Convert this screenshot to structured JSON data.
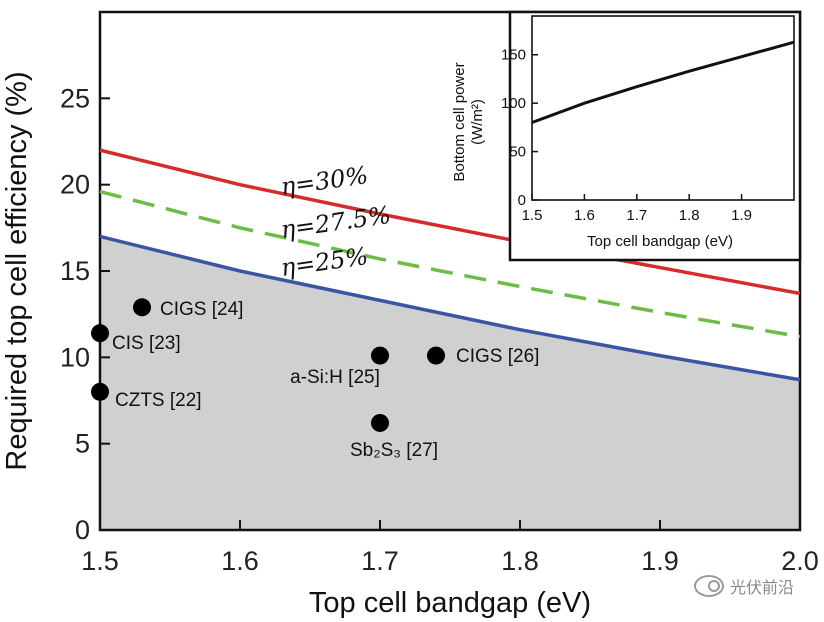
{
  "chart_data": {
    "type": "line",
    "xlabel": "Top cell bandgap (eV)",
    "ylabel": "Required top cell efficiency (%)",
    "xlim": [
      1.5,
      2.0
    ],
    "ylim": [
      0,
      30
    ],
    "xticks": [
      "1.5",
      "1.6",
      "1.7",
      "1.8",
      "1.9",
      "2.0"
    ],
    "yticks": [
      "0",
      "5",
      "10",
      "15",
      "20",
      "25"
    ],
    "series": [
      {
        "name": "η=30%",
        "label_text": "η=30%",
        "color": "#d62b2b",
        "dash": "solid",
        "x": [
          1.5,
          1.6,
          1.7,
          1.8,
          1.9,
          2.0
        ],
        "y": [
          22.0,
          20.0,
          18.3,
          16.7,
          15.2,
          13.7
        ]
      },
      {
        "name": "η=27.5%",
        "label_text": "η=27.5%",
        "color": "#6cbd45",
        "dash": "dashed",
        "x": [
          1.5,
          1.6,
          1.7,
          1.8,
          1.9,
          2.0
        ],
        "y": [
          19.6,
          17.5,
          15.7,
          14.1,
          12.6,
          11.2
        ]
      },
      {
        "name": "η=25%",
        "label_text": "η=25%",
        "color": "#3a55a4",
        "dash": "solid",
        "x": [
          1.5,
          1.6,
          1.7,
          1.8,
          1.9,
          2.0
        ],
        "y": [
          17.0,
          15.0,
          13.3,
          11.6,
          10.1,
          8.7
        ]
      }
    ],
    "shaded_region": {
      "under_series": "η=25%",
      "color": "#d0d0d0"
    },
    "points": [
      {
        "label": "CIS [23]",
        "x": 1.5,
        "y": 11.4
      },
      {
        "label": "CZTS [22]",
        "x": 1.5,
        "y": 8.0
      },
      {
        "label": "CIGS [24]",
        "x": 1.53,
        "y": 12.9
      },
      {
        "label": "a-Si:H [25]",
        "x": 1.7,
        "y": 10.1
      },
      {
        "label": "CIGS [26]",
        "x": 1.74,
        "y": 10.1
      },
      {
        "label": "Sb₂S₃ [27]",
        "x": 1.7,
        "y": 6.2
      }
    ],
    "inset": {
      "type": "line",
      "xlabel": "Top cell bandgap (eV)",
      "ylabel": "Bottom cell power",
      "ylabel_unit": "(W/m²)",
      "xlim": [
        1.5,
        2.0
      ],
      "ylim": [
        0,
        190
      ],
      "xticks": [
        "1.5",
        "1.6",
        "1.7",
        "1.8",
        "1.9"
      ],
      "yticks": [
        "0",
        "50",
        "100",
        "150"
      ],
      "x": [
        1.5,
        1.6,
        1.7,
        1.8,
        1.9,
        2.0
      ],
      "y": [
        80,
        100,
        117,
        133,
        148,
        163
      ]
    }
  },
  "watermark": {
    "text": "光伏前沿"
  }
}
